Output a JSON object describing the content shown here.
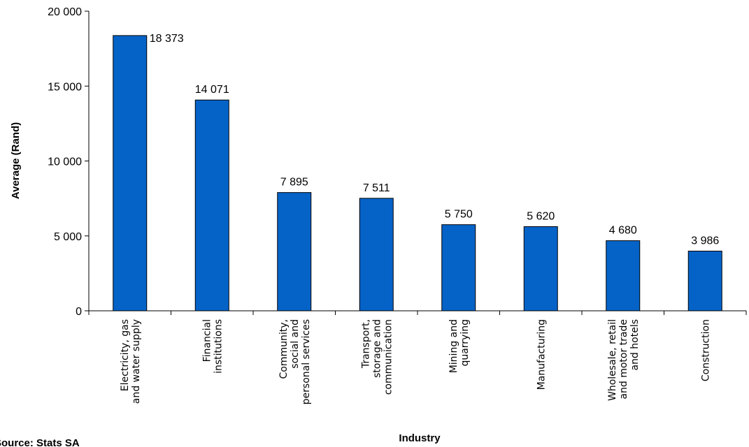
{
  "chart_data": {
    "type": "bar",
    "categories": [
      [
        "Electricity, gas",
        "and water supply"
      ],
      [
        "Financial",
        "institutions"
      ],
      [
        "Community,",
        "social and",
        "personal services"
      ],
      [
        "Transport,",
        "storage and",
        "communication"
      ],
      [
        "Mining and",
        "quarrying"
      ],
      [
        "Manufacturing"
      ],
      [
        "Wholesale, retail",
        "and motor trade",
        "and hotels"
      ],
      [
        "Construction"
      ]
    ],
    "values": [
      18373,
      14071,
      7895,
      7511,
      5750,
      5620,
      4680,
      3986
    ],
    "value_labels": [
      "18 373",
      "14 071",
      "7 895",
      "7 511",
      "5 750",
      "5 620",
      "4 680",
      "3 986"
    ],
    "yticks": [
      0,
      5000,
      10000,
      15000,
      20000
    ],
    "ytick_labels": [
      "0",
      "5 000",
      "10 000",
      "15 000",
      "20 000"
    ],
    "ylim": [
      0,
      20000
    ],
    "xlabel": "Industry",
    "ylabel": "Average (Rand)",
    "bar_color": "#0563C8",
    "grid": false,
    "legend": "none"
  },
  "source": "Source: Stats SA"
}
